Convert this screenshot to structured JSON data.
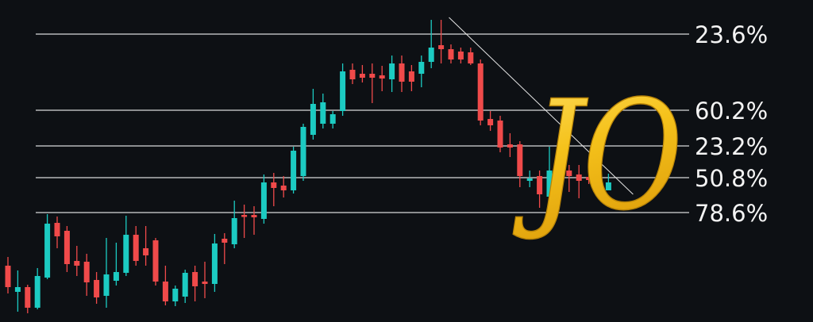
{
  "chart_data": {
    "type": "candlestick",
    "title": "",
    "xlabel": "",
    "ylabel": "",
    "ylim": [
      0,
      101.5
    ],
    "grid": false,
    "colors": {
      "background": "#0d1014",
      "up": "#1ccbc2",
      "down": "#f04a4a",
      "fib_line": "#d9d9d9",
      "trend_line": "#e6e6e6",
      "logo": "#f5c21b"
    },
    "candles": [
      [
        17.75,
        11,
        20.5,
        9
      ],
      [
        9.5,
        11,
        16.25,
        3.25
      ],
      [
        11,
        4.5,
        11.75,
        2.75
      ],
      [
        4.5,
        14.5,
        17,
        4
      ],
      [
        14,
        31,
        34,
        13.5
      ],
      [
        31.25,
        27,
        33.25,
        23.25
      ],
      [
        28.75,
        18.25,
        30.25,
        15.75
      ],
      [
        19.25,
        17.75,
        24,
        14.5
      ],
      [
        19,
        12.5,
        21.5,
        8.25
      ],
      [
        13.25,
        7.75,
        15.75,
        5.75
      ],
      [
        8.25,
        15,
        26.5,
        4.5
      ],
      [
        13,
        15.75,
        25,
        11.5
      ],
      [
        15.5,
        27.5,
        33.5,
        14.5
      ],
      [
        27.5,
        19.25,
        30.25,
        17.75
      ],
      [
        23.25,
        21,
        30.25,
        17.75
      ],
      [
        25.75,
        12.75,
        26.5,
        11.5
      ],
      [
        12.75,
        6.5,
        17.75,
        5.25
      ],
      [
        6.5,
        10.5,
        11.5,
        5
      ],
      [
        8,
        15.5,
        16.5,
        6
      ],
      [
        15.75,
        11.25,
        17.75,
        6.5
      ],
      [
        12.75,
        12,
        19,
        7.5
      ],
      [
        12,
        24.75,
        27.75,
        9.5
      ],
      [
        26.25,
        25,
        28,
        18.25
      ],
      [
        24.5,
        32.75,
        38.25,
        23.25
      ],
      [
        33.75,
        33.25,
        37,
        26.5
      ],
      [
        33.75,
        33,
        36.5,
        27.5
      ],
      [
        32.5,
        44,
        46.5,
        31
      ],
      [
        44,
        42.25,
        47,
        36.5
      ],
      [
        43,
        41.5,
        46,
        39.25
      ],
      [
        41.5,
        54,
        55.25,
        40.5
      ],
      [
        46,
        61.5,
        62.5,
        44.5
      ],
      [
        59,
        68.75,
        73.5,
        57.5
      ],
      [
        62.5,
        69.25,
        72,
        61
      ],
      [
        62.5,
        65.5,
        66.5,
        61
      ],
      [
        66.5,
        79,
        81.5,
        65
      ],
      [
        79.5,
        76.5,
        81.5,
        75
      ],
      [
        78.25,
        77,
        81,
        75.5
      ],
      [
        78.25,
        77,
        81.5,
        69
      ],
      [
        77.75,
        76.75,
        80.75,
        72.75
      ],
      [
        76.5,
        81.5,
        84,
        72.5
      ],
      [
        81.5,
        75.75,
        84,
        72.5
      ],
      [
        79,
        75.75,
        81,
        72.75
      ],
      [
        78.25,
        82,
        84,
        74
      ],
      [
        82,
        86.5,
        95.25,
        80
      ],
      [
        87.25,
        86,
        95.25,
        81.5
      ],
      [
        86,
        82.75,
        87.5,
        81.5
      ],
      [
        85.25,
        82.75,
        86.5,
        81.5
      ],
      [
        85,
        81.5,
        86.5,
        81
      ],
      [
        81.5,
        63.5,
        82.75,
        62
      ],
      [
        64,
        62,
        66.5,
        60.25
      ],
      [
        63.5,
        55,
        65,
        53.5
      ],
      [
        56,
        55,
        59.5,
        52
      ],
      [
        56,
        46,
        57,
        42.5
      ],
      [
        44.5,
        45.25,
        47.75,
        42.5
      ],
      [
        46,
        40.25,
        47.75,
        36
      ],
      [
        39.5,
        47.75,
        55.25,
        38.5
      ],
      [
        49,
        45.5,
        54,
        43.5
      ],
      [
        47.75,
        46,
        49.5,
        41
      ],
      [
        46.5,
        44.5,
        49.5,
        39
      ],
      [
        45.75,
        44.75,
        47.75,
        43.5
      ],
      [
        44,
        41.5,
        46.75,
        41.25
      ],
      [
        41.5,
        44,
        46.75,
        42.75
      ]
    ],
    "candle_format": [
      "open",
      "close",
      "high",
      "low"
    ],
    "fib_levels": [
      {
        "label": "23.6%",
        "price": 90.75
      },
      {
        "label": "60.2%",
        "price": 66.75
      },
      {
        "label": "23.2%",
        "price": 55.5
      },
      {
        "label": "50.8%",
        "price": 45.5
      },
      {
        "label": "78.6%",
        "price": 34.5
      }
    ],
    "trend_line": {
      "from": {
        "index": 44.8,
        "price": 96
      },
      "to": {
        "index": 63.5,
        "price": 40.25
      }
    }
  },
  "logo": {
    "text": "JO"
  }
}
